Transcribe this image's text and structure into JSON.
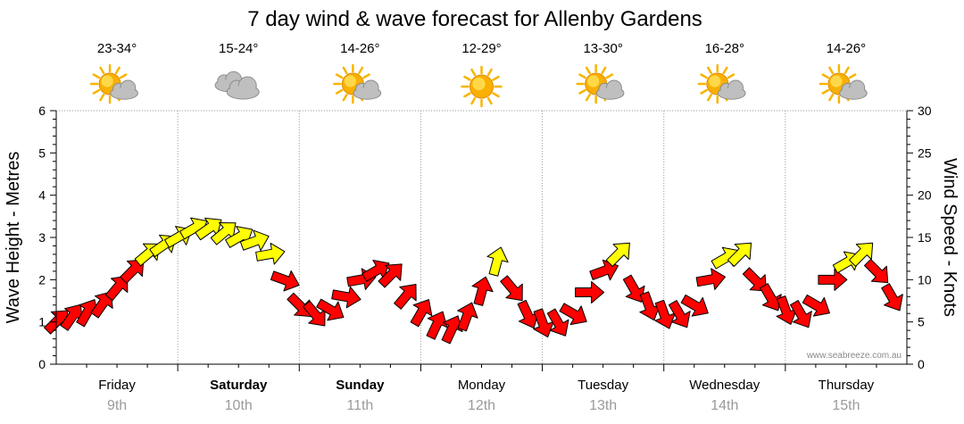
{
  "chart_data": {
    "type": "line",
    "title": "7 day wind & wave forecast for Allenby Gardens",
    "ylabel_left": "Wave Height - Metres",
    "ylabel_right": "Wind Speed - Knots",
    "ylim_left": [
      0,
      6
    ],
    "ylim_right": [
      0,
      30
    ],
    "yticks_left": [
      "0",
      "1",
      "2",
      "3",
      "4",
      "5",
      "6"
    ],
    "yticks_right": [
      "0",
      "5",
      "10",
      "15",
      "20",
      "25",
      "30"
    ],
    "grid": true,
    "credit": "www.seabreeze.com.au",
    "days": [
      {
        "name": "Friday",
        "date": "9th",
        "bold": false,
        "temp": "23-34°",
        "weather_icon": "sun-cloud-icon"
      },
      {
        "name": "Saturday",
        "date": "10th",
        "bold": true,
        "temp": "15-24°",
        "weather_icon": "cloud-icon"
      },
      {
        "name": "Sunday",
        "date": "11th",
        "bold": true,
        "temp": "14-26°",
        "weather_icon": "sun-cloud-icon"
      },
      {
        "name": "Monday",
        "date": "12th",
        "bold": false,
        "temp": "12-29°",
        "weather_icon": "sun-icon"
      },
      {
        "name": "Tuesday",
        "date": "13th",
        "bold": false,
        "temp": "13-30°",
        "weather_icon": "sun-cloud-icon"
      },
      {
        "name": "Wednesday",
        "date": "14th",
        "bold": false,
        "temp": "16-28°",
        "weather_icon": "sun-cloud-icon"
      },
      {
        "name": "Thursday",
        "date": "15th",
        "bold": false,
        "temp": "14-26°",
        "weather_icon": "sun-cloud-icon"
      }
    ],
    "series": [
      {
        "unit": "knots",
        "color_low": "#ff0000",
        "color_high": "#ffff00",
        "threshold_knots": 12,
        "arrow_symbol": "wind-arrow-icon",
        "x_hours": [
          0,
          3,
          6,
          9,
          12,
          15,
          18,
          21,
          24,
          27,
          30,
          33,
          36,
          39,
          42,
          45,
          48,
          51,
          54,
          57,
          60,
          63,
          66,
          69,
          72,
          75,
          78,
          81,
          84,
          87,
          90,
          93,
          96,
          99,
          102,
          105,
          108,
          111,
          114,
          117,
          120,
          123,
          126,
          129,
          132,
          135,
          138,
          141,
          144,
          147,
          150,
          153,
          156,
          159,
          162,
          165
        ],
        "values": [
          5,
          5.5,
          6,
          7,
          9,
          11,
          13,
          14,
          15,
          16,
          16,
          15.5,
          15,
          14.5,
          13,
          10,
          7,
          6,
          6.5,
          8,
          10,
          11,
          10.5,
          8,
          6,
          4.5,
          4,
          5.5,
          8.5,
          12,
          9,
          6,
          5,
          5,
          6,
          8.5,
          11,
          13,
          9,
          7,
          6,
          6,
          7,
          10,
          12.5,
          13,
          10,
          8,
          6.5,
          6,
          7,
          10,
          12,
          13,
          11,
          8
        ],
        "directions_deg": [
          45,
          35,
          30,
          35,
          40,
          45,
          50,
          55,
          60,
          60,
          55,
          50,
          60,
          70,
          80,
          110,
          135,
          140,
          120,
          100,
          80,
          60,
          45,
          40,
          30,
          25,
          25,
          20,
          15,
          15,
          140,
          155,
          160,
          150,
          120,
          90,
          70,
          45,
          150,
          160,
          160,
          150,
          120,
          80,
          60,
          45,
          135,
          150,
          160,
          150,
          120,
          90,
          60,
          45,
          135,
          150
        ]
      }
    ]
  }
}
